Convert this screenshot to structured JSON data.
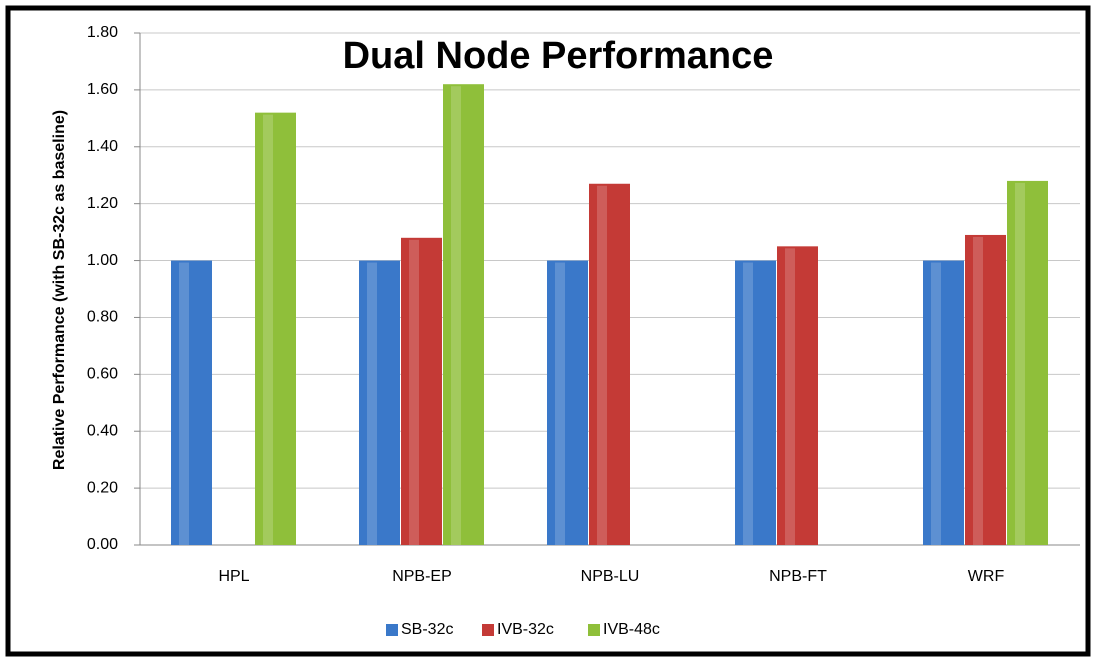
{
  "chart_data": {
    "type": "bar",
    "title": "Dual Node Performance",
    "y_label": "Relative Performance (with SB-32c as baseline)",
    "categories": [
      "HPL",
      "NPB-EP",
      "NPB-LU",
      "NPB-FT",
      "WRF"
    ],
    "series": [
      {
        "name": "SB-32c",
        "color": "#3a78c9",
        "values": [
          1.0,
          1.0,
          1.0,
          1.0,
          1.0
        ]
      },
      {
        "name": "IVB-32c",
        "color": "#c43a36",
        "values": [
          null,
          1.08,
          1.27,
          1.05,
          1.09
        ]
      },
      {
        "name": "IVB-48c",
        "color": "#8fbf3a",
        "values": [
          1.52,
          1.62,
          null,
          null,
          1.28
        ]
      }
    ],
    "ylim": [
      0,
      1.8
    ],
    "yticks": [
      {
        "value": 0,
        "label": "0.00"
      },
      {
        "value": 0.2,
        "label": "0.20"
      },
      {
        "value": 0.4,
        "label": "0.40"
      },
      {
        "value": 0.6,
        "label": "0.60"
      },
      {
        "value": 0.8,
        "label": "0.80"
      },
      {
        "value": 1.0,
        "label": "1.00"
      },
      {
        "value": 1.2,
        "label": "1.20"
      },
      {
        "value": 1.4,
        "label": "1.40"
      },
      {
        "value": 1.6,
        "label": "1.60"
      },
      {
        "value": 1.8,
        "label": "1.80"
      }
    ],
    "grid": true,
    "legend": "bottom"
  }
}
